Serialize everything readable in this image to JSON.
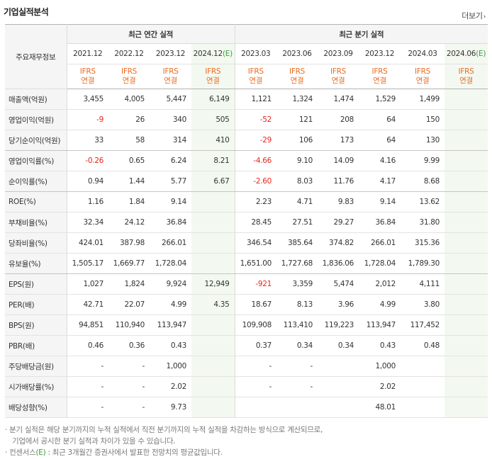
{
  "header": {
    "title": "기업실적분석",
    "more_label": "더보기",
    "more_arrow": "›"
  },
  "table": {
    "row_label_header": "주요재무정보",
    "group_annual": "최근 연간 실적",
    "group_quarter": "최근 분기 실적",
    "periods": [
      {
        "label": "2021.12",
        "estimate": false
      },
      {
        "label": "2022.12",
        "estimate": false
      },
      {
        "label": "2023.12",
        "estimate": false
      },
      {
        "label": "2024.12",
        "suffix": "(E)",
        "estimate": true
      },
      {
        "label": "2023.03",
        "estimate": false
      },
      {
        "label": "2023.06",
        "estimate": false
      },
      {
        "label": "2023.09",
        "estimate": false
      },
      {
        "label": "2023.12",
        "estimate": false
      },
      {
        "label": "2024.03",
        "estimate": false
      },
      {
        "label": "2024.06",
        "suffix": "(E)",
        "estimate": true
      }
    ],
    "standard_line1": "IFRS",
    "standard_line2": "연결",
    "rows": [
      {
        "label": "매출액(억원)",
        "values": [
          "3,455",
          "4,005",
          "5,447",
          "6,149",
          "1,121",
          "1,324",
          "1,474",
          "1,529",
          "1,499",
          ""
        ]
      },
      {
        "label": "영업이익(억원)",
        "values": [
          "-9",
          "26",
          "340",
          "505",
          "-52",
          "121",
          "208",
          "64",
          "150",
          ""
        ]
      },
      {
        "label": "당기순이익(억원)",
        "values": [
          "33",
          "58",
          "314",
          "410",
          "-29",
          "106",
          "173",
          "64",
          "130",
          ""
        ]
      },
      {
        "label": "영업이익률(%)",
        "values": [
          "-0.26",
          "0.65",
          "6.24",
          "8.21",
          "-4.66",
          "9.10",
          "14.09",
          "4.16",
          "9.99",
          ""
        ]
      },
      {
        "label": "순이익률(%)",
        "values": [
          "0.94",
          "1.44",
          "5.77",
          "6.67",
          "-2.60",
          "8.03",
          "11.76",
          "4.17",
          "8.68",
          ""
        ]
      },
      {
        "label": "ROE(%)",
        "values": [
          "1.16",
          "1.84",
          "9.14",
          "",
          "2.23",
          "4.71",
          "9.83",
          "9.14",
          "13.62",
          ""
        ]
      },
      {
        "label": "부채비율(%)",
        "values": [
          "32.34",
          "24.12",
          "36.84",
          "",
          "28.45",
          "27.51",
          "29.27",
          "36.84",
          "31.80",
          ""
        ]
      },
      {
        "label": "당좌비율(%)",
        "values": [
          "424.01",
          "387.98",
          "266.01",
          "",
          "346.54",
          "385.64",
          "374.82",
          "266.01",
          "315.36",
          ""
        ]
      },
      {
        "label": "유보율(%)",
        "values": [
          "1,505.17",
          "1,669.77",
          "1,728.04",
          "",
          "1,651.00",
          "1,727.68",
          "1,836.06",
          "1,728.04",
          "1,789.30",
          ""
        ]
      },
      {
        "label": "EPS(원)",
        "values": [
          "1,027",
          "1,824",
          "9,924",
          "12,949",
          "-921",
          "3,359",
          "5,474",
          "2,012",
          "4,111",
          ""
        ]
      },
      {
        "label": "PER(배)",
        "values": [
          "42.71",
          "22.07",
          "4.99",
          "4.35",
          "18.67",
          "8.13",
          "3.96",
          "4.99",
          "3.80",
          ""
        ]
      },
      {
        "label": "BPS(원)",
        "values": [
          "94,851",
          "110,940",
          "113,947",
          "",
          "109,908",
          "113,410",
          "119,223",
          "113,947",
          "117,452",
          ""
        ]
      },
      {
        "label": "PBR(배)",
        "values": [
          "0.46",
          "0.36",
          "0.43",
          "",
          "0.37",
          "0.34",
          "0.34",
          "0.43",
          "0.48",
          ""
        ]
      },
      {
        "label": "주당배당금(원)",
        "values": [
          "-",
          "-",
          "1,000",
          "",
          "-",
          "-",
          "",
          "1,000",
          "",
          ""
        ]
      },
      {
        "label": "시가배당률(%)",
        "values": [
          "-",
          "-",
          "2.02",
          "",
          "-",
          "-",
          "",
          "2.02",
          "",
          ""
        ]
      },
      {
        "label": "배당성향(%)",
        "values": [
          "-",
          "-",
          "9.73",
          "",
          "",
          "",
          "",
          "48.01",
          "",
          ""
        ]
      }
    ]
  },
  "notes": {
    "line1": "· 분기 실적은 해당 분기까지의 누적 실적에서 직전 분기까지의 누적 실적을 차감하는 방식으로 계산되므로,",
    "line2": "기업에서 공시한 분기 실적과 차이가 있을 수 있습니다.",
    "line3_prefix": "· 컨센서스",
    "line3_e": "(E)",
    "line3_suffix": " : 최근 3개월간 증권사에서 발표한 전망치의 평균값입니다."
  },
  "colors": {
    "negative": "#e4261c",
    "estimate_bg": "#f3f9f0",
    "standard_text": "#e86c22",
    "estimate_mark": "#3c9d3f"
  }
}
